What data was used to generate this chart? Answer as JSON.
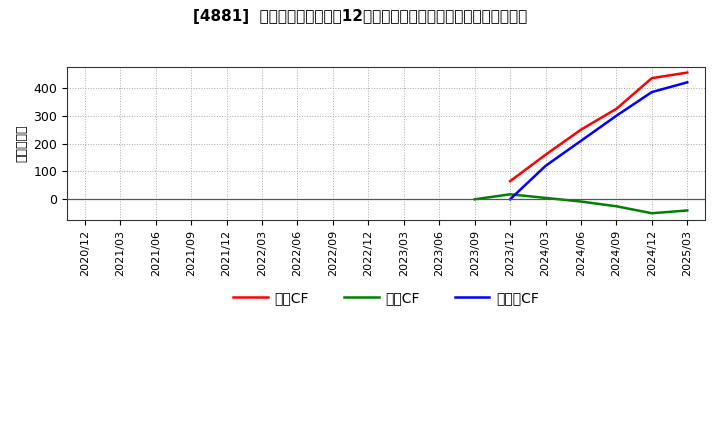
{
  "title": "[4881]  キャッシュフローの12か月移動合計の対前年同期増減額の推移",
  "ylabel": "（百万円）",
  "background_color": "#ffffff",
  "plot_bg_color": "#ffffff",
  "grid_color": "#aaaaaa",
  "x_labels": [
    "2020/12",
    "2021/03",
    "2021/06",
    "2021/09",
    "2021/12",
    "2022/03",
    "2022/06",
    "2022/09",
    "2022/12",
    "2023/03",
    "2023/06",
    "2023/09",
    "2023/12",
    "2024/03",
    "2024/06",
    "2024/09",
    "2024/12",
    "2025/03"
  ],
  "operating_cf_x": [
    12,
    13,
    14,
    15,
    16,
    17
  ],
  "operating_cf_y": [
    65,
    160,
    250,
    325,
    435,
    455
  ],
  "investing_cf_x": [
    11,
    12,
    13,
    14,
    15,
    16,
    17
  ],
  "investing_cf_y": [
    0,
    18,
    5,
    -8,
    -25,
    -50,
    -40
  ],
  "free_cf_x": [
    12,
    13,
    14,
    15,
    16,
    17
  ],
  "free_cf_y": [
    0,
    120,
    210,
    300,
    385,
    420
  ],
  "operating_color": "#ff0000",
  "investing_color": "#008000",
  "free_color": "#0000ff",
  "ylim": [
    -75,
    475
  ],
  "yticks": [
    0,
    100,
    200,
    300,
    400
  ],
  "legend_labels": [
    "営業CF",
    "投資CF",
    "フリーCF"
  ]
}
